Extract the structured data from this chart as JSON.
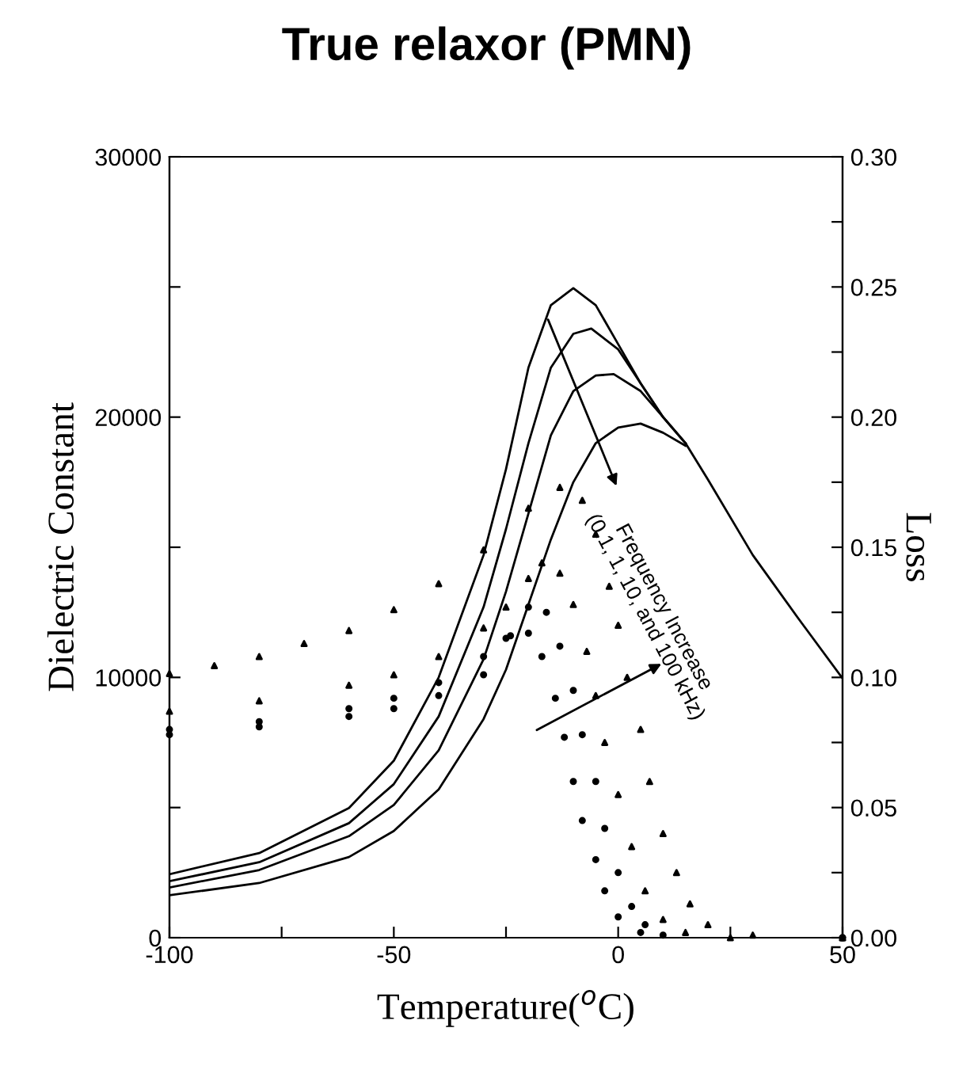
{
  "chart_data": {
    "type": "line",
    "title": "True relaxor (PMN)",
    "xlabel": "Temperature($^{o}$C)",
    "ylabel": "Dielectric Constant",
    "y2label": "Loss",
    "annotations": [
      "Frequency Increase\n(0.1, 1, 10, and 100 kHz)"
    ],
    "xlim": [
      -100,
      50
    ],
    "xticks": [
      -100,
      {
        "value": -75,
        "label": null
      },
      -50,
      {
        "value": -25,
        "label": null
      },
      0,
      {
        "value": 25,
        "label": null
      },
      50
    ],
    "ylim": [
      0,
      30000
    ],
    "yticks": [
      0,
      {
        "value": 5000,
        "label": null
      },
      10000,
      {
        "value": 15000,
        "label": null
      },
      20000,
      {
        "value": 25000,
        "label": null
      },
      30000
    ],
    "y2lim": [
      0,
      0.3
    ],
    "y2ticks": [
      {
        "value": 0,
        "label": "0.00"
      },
      {
        "value": 0.025,
        "label": null
      },
      {
        "value": 0.05,
        "label": "0.05"
      },
      {
        "value": 0.075,
        "label": null
      },
      {
        "value": 0.1,
        "label": "0.10"
      },
      {
        "value": 0.125,
        "label": null
      },
      {
        "value": 0.15,
        "label": "0.15"
      },
      {
        "value": 0.175,
        "label": null
      },
      {
        "value": 0.2,
        "label": "0.20"
      },
      {
        "value": 0.225,
        "label": null
      },
      {
        "value": 0.25,
        "label": "0.25"
      },
      {
        "value": 0.275,
        "label": null
      },
      {
        "value": 0.3,
        "label": "0.30"
      }
    ],
    "grid": false,
    "legend": false,
    "series": [
      {
        "color": "#000000",
        "x": [
          -100,
          -80,
          -60,
          -50,
          -40,
          -30,
          -25,
          -20,
          -15,
          -10,
          -5,
          0,
          5,
          10,
          15,
          20,
          30,
          40,
          50
        ],
        "values": [
          2440,
          3250,
          4980,
          6800,
          10000,
          14700,
          18000,
          21900,
          24300,
          24950,
          24300,
          22800,
          21300,
          20000,
          19000,
          17600,
          14700,
          12300,
          9960
        ]
      },
      {
        "color": "#000000",
        "x": [
          -100,
          -80,
          -60,
          -50,
          -40,
          -30,
          -25,
          -20,
          -15,
          -10,
          -6,
          0,
          5,
          10,
          15
        ],
        "values": [
          2170,
          2900,
          4400,
          5900,
          8500,
          12700,
          15700,
          19000,
          21900,
          23200,
          23400,
          22600,
          21300,
          20000,
          19000
        ]
      },
      {
        "color": "#000000",
        "x": [
          -100,
          -80,
          -60,
          -50,
          -40,
          -30,
          -25,
          -20,
          -15,
          -10,
          -5,
          -1,
          5,
          10,
          15
        ],
        "values": [
          1930,
          2600,
          3900,
          5100,
          7200,
          10700,
          13300,
          16300,
          19300,
          21000,
          21600,
          21650,
          21000,
          20000,
          19000
        ]
      },
      {
        "color": "#000000",
        "x": [
          -100,
          -80,
          -60,
          -50,
          -40,
          -30,
          -25,
          -20,
          -15,
          -10,
          -5,
          0,
          5,
          10,
          15
        ],
        "values": [
          1630,
          2100,
          3100,
          4100,
          5700,
          8400,
          10300,
          12800,
          15300,
          17500,
          19000,
          19600,
          19750,
          19400,
          18900
        ]
      },
      {
        "type": "scatter",
        "axis": "y2",
        "marker": "triangle",
        "color": "#000000",
        "x": [
          -100,
          -90,
          -80,
          -70,
          -60,
          -50,
          -40,
          -30,
          -20,
          -13,
          -8,
          -5,
          -2,
          0,
          2,
          5,
          7,
          10,
          13,
          16,
          20,
          30,
          50
        ],
        "values": [
          0.1015,
          0.1045,
          0.108,
          0.113,
          0.118,
          0.126,
          0.136,
          0.149,
          0.165,
          0.173,
          0.168,
          0.155,
          0.135,
          0.12,
          0.1,
          0.08,
          0.06,
          0.04,
          0.025,
          0.013,
          0.005,
          0.001,
          0.0
        ]
      },
      {
        "type": "scatter",
        "axis": "y2",
        "marker": "triangle",
        "color": "#000000",
        "x": [
          -100,
          -80,
          -60,
          -50,
          -40,
          -30,
          -25,
          -20,
          -17,
          -13,
          -10,
          -7,
          -5,
          -3,
          0,
          3,
          6,
          10,
          15,
          25,
          50
        ],
        "values": [
          0.087,
          0.091,
          0.097,
          0.101,
          0.108,
          0.119,
          0.127,
          0.138,
          0.144,
          0.14,
          0.128,
          0.11,
          0.093,
          0.075,
          0.055,
          0.035,
          0.018,
          0.007,
          0.002,
          0.0,
          0.0
        ]
      },
      {
        "type": "scatter",
        "axis": "y2",
        "marker": "circle",
        "color": "#000000",
        "x": [
          -100,
          -80,
          -60,
          -50,
          -40,
          -30,
          -25,
          -20,
          -16,
          -13,
          -10,
          -8,
          -5,
          -3,
          0,
          3,
          6,
          10,
          50
        ],
        "values": [
          0.08,
          0.083,
          0.088,
          0.092,
          0.098,
          0.108,
          0.115,
          0.127,
          0.125,
          0.112,
          0.095,
          0.078,
          0.06,
          0.042,
          0.025,
          0.012,
          0.005,
          0.001,
          0.0
        ]
      },
      {
        "type": "scatter",
        "axis": "y2",
        "marker": "circle",
        "color": "#000000",
        "x": [
          -100,
          -80,
          -60,
          -50,
          -40,
          -30,
          -24,
          -20,
          -17,
          -14,
          -12,
          -10,
          -8,
          -5,
          -3,
          0,
          5,
          50
        ],
        "values": [
          0.078,
          0.081,
          0.085,
          0.088,
          0.093,
          0.101,
          0.116,
          0.117,
          0.108,
          0.092,
          0.077,
          0.06,
          0.045,
          0.03,
          0.018,
          0.008,
          0.002,
          0.0
        ]
      }
    ]
  }
}
